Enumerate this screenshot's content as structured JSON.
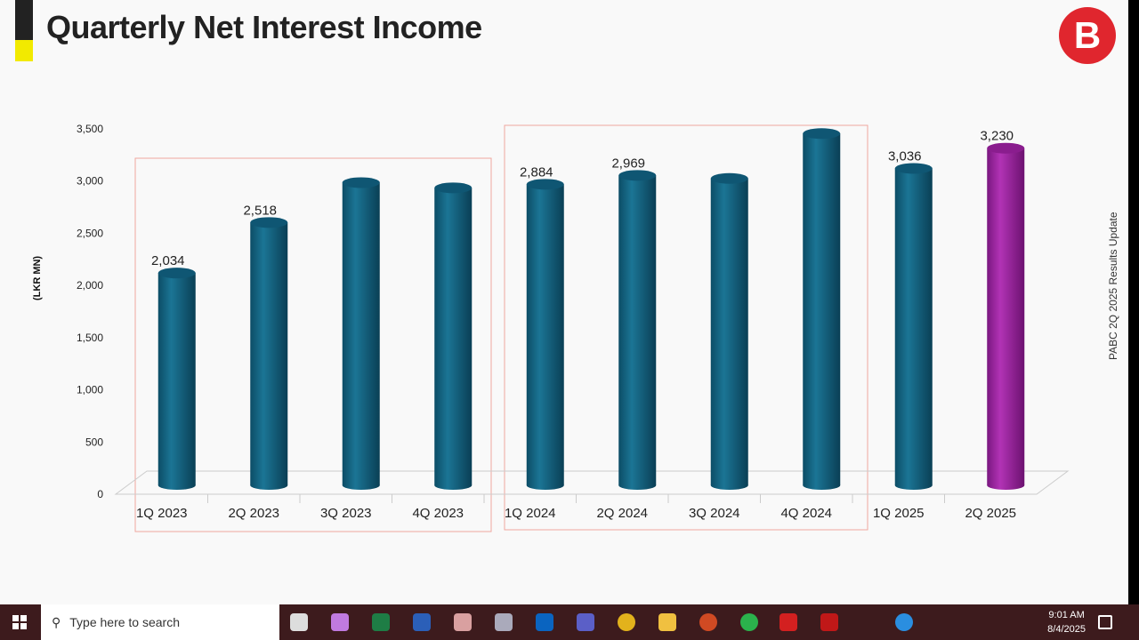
{
  "slide": {
    "title": "Quarterly Net Interest Income",
    "side_text": "PABC 2Q 2025 Results Update",
    "logo_text": "B"
  },
  "chart_data": {
    "type": "bar",
    "title": "Quarterly Net Interest Income",
    "ylabel": "(LKR MN)",
    "xlabel": "",
    "ylim": [
      0,
      3500
    ],
    "yticks": [
      "0",
      "500",
      "1,000",
      "1,500",
      "2,000",
      "2,500",
      "3,000",
      "3,500"
    ],
    "categories": [
      "1Q 2023",
      "2Q 2023",
      "3Q 2023",
      "4Q 2023",
      "1Q 2024",
      "2Q 2024",
      "3Q 2024",
      "4Q 2024",
      "1Q 2025",
      "2Q 2025"
    ],
    "values": [
      2034,
      2518,
      2900,
      2850,
      2884,
      2969,
      2940,
      3370,
      3036,
      3230
    ],
    "data_labels": [
      "2,034",
      "2,518",
      "",
      "",
      "2,884",
      "2,969",
      "",
      "",
      "3,036",
      "3,230"
    ],
    "colors": {
      "bar": "#125f7c",
      "highlight": "#9b1f9e",
      "box": "#f0a8a0"
    },
    "highlight_index": 9,
    "grid": false
  },
  "taskbar": {
    "search_placeholder": "Type here to search",
    "time": "9:01 AM",
    "date": "8/4/2025"
  }
}
